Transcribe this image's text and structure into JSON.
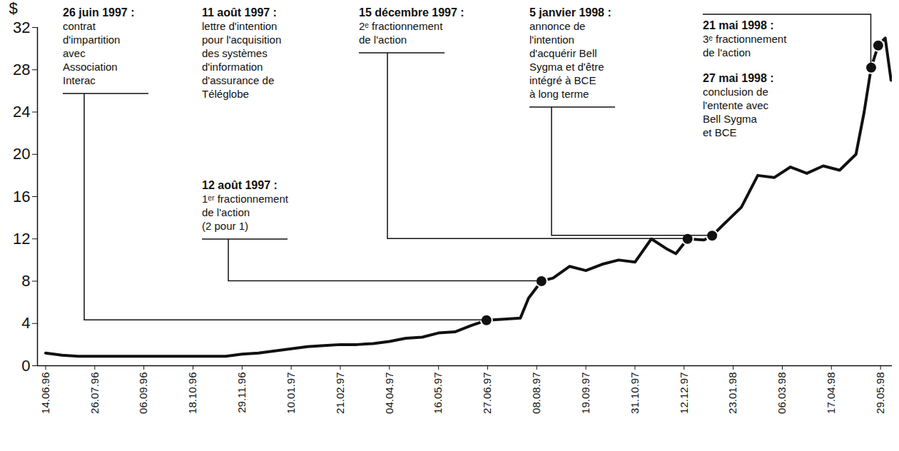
{
  "chart_data": {
    "type": "line",
    "ylabel": "$",
    "color": "#111111",
    "x": [
      "1996-06-14",
      "1996-06-28",
      "1996-07-12",
      "1996-07-26",
      "1996-08-09",
      "1996-08-23",
      "1996-09-06",
      "1996-09-20",
      "1996-10-04",
      "1996-10-18",
      "1996-11-01",
      "1996-11-15",
      "1996-11-29",
      "1996-12-13",
      "1996-12-27",
      "1997-01-10",
      "1997-01-24",
      "1997-02-07",
      "1997-02-21",
      "1997-03-07",
      "1997-03-21",
      "1997-04-04",
      "1997-04-18",
      "1997-05-02",
      "1997-05-16",
      "1997-05-30",
      "1997-06-13",
      "1997-06-26",
      "1997-07-11",
      "1997-07-25",
      "1997-08-01",
      "1997-08-12",
      "1997-08-22",
      "1997-09-05",
      "1997-09-19",
      "1997-10-03",
      "1997-10-17",
      "1997-10-31",
      "1997-11-14",
      "1997-11-28",
      "1997-12-05",
      "1997-12-15",
      "1997-12-29",
      "1998-01-05",
      "1998-01-16",
      "1998-01-30",
      "1998-02-13",
      "1998-02-27",
      "1998-03-13",
      "1998-03-27",
      "1998-04-10",
      "1998-04-24",
      "1998-05-08",
      "1998-05-15",
      "1998-05-21",
      "1998-05-27",
      "1998-06-02",
      "1998-06-07"
    ],
    "values": [
      1.2,
      1.0,
      0.9,
      0.9,
      0.9,
      0.9,
      0.9,
      0.9,
      0.9,
      0.9,
      0.9,
      0.9,
      1.1,
      1.2,
      1.4,
      1.6,
      1.8,
      1.9,
      2.0,
      2.0,
      2.1,
      2.3,
      2.6,
      2.7,
      3.1,
      3.2,
      3.8,
      4.3,
      4.4,
      4.5,
      6.4,
      8.0,
      8.3,
      9.4,
      9.0,
      9.6,
      10.0,
      9.8,
      12.0,
      11.0,
      10.6,
      12.0,
      11.9,
      12.3,
      13.5,
      15.0,
      18.0,
      17.8,
      18.8,
      18.2,
      18.9,
      18.5,
      20.0,
      24.0,
      28.2,
      30.3,
      31.0,
      27.0
    ],
    "highlights": {
      "x": [
        "1997-06-26",
        "1997-08-12",
        "1997-12-15",
        "1998-01-05",
        "1998-05-21",
        "1998-05-27"
      ],
      "values": [
        4.3,
        8.0,
        12.0,
        12.3,
        28.2,
        30.3
      ]
    },
    "xlim": [
      "1996-06-07",
      "1998-06-08"
    ],
    "xticks": [
      {
        "value": "1996-06-14",
        "label": "14.06.96"
      },
      {
        "value": "1996-07-26",
        "label": "26.07.96"
      },
      {
        "value": "1996-09-06",
        "label": "06.09.96"
      },
      {
        "value": "1996-10-18",
        "label": "18.10.96"
      },
      {
        "value": "1996-11-29",
        "label": "29.11.96"
      },
      {
        "value": "1997-01-10",
        "label": "10.01.97"
      },
      {
        "value": "1997-02-21",
        "label": "21.02.97"
      },
      {
        "value": "1997-04-04",
        "label": "04.04.97"
      },
      {
        "value": "1997-05-16",
        "label": "16.05.97"
      },
      {
        "value": "1997-06-27",
        "label": "27.06.97"
      },
      {
        "value": "1997-08-08",
        "label": "08.08.97"
      },
      {
        "value": "1997-09-19",
        "label": "19.09.97"
      },
      {
        "value": "1997-10-31",
        "label": "31.10.97"
      },
      {
        "value": "1997-12-12",
        "label": "12.12.97"
      },
      {
        "value": "1998-01-23",
        "label": "23.01.98"
      },
      {
        "value": "1998-03-06",
        "label": "06.03.98"
      },
      {
        "value": "1998-04-17",
        "label": "17.04.98"
      },
      {
        "value": "1998-05-29",
        "label": "29.05.98"
      }
    ],
    "ylim": [
      0,
      32
    ],
    "yticks": [
      0,
      4,
      8,
      12,
      16,
      20,
      24,
      28,
      32
    ],
    "annotations": [
      {
        "title": "26 juin 1997 :",
        "text": [
          "contrat",
          "d'impartition",
          "avec",
          "Association",
          "Interac"
        ],
        "x": "1997-06-26",
        "y": 4.3
      },
      {
        "title": "11 août 1997 :",
        "text": [
          "lettre d'intention",
          "pour l'acquisition",
          "des systèmes",
          "d'information",
          "d'assurance de",
          "Téléglobe"
        ]
      },
      {
        "title": "12 août 1997 :",
        "text": [
          "1ᵉʳ fractionnement",
          "de l'action",
          "(2 pour 1)"
        ],
        "x": "1997-08-12",
        "y": 8.0
      },
      {
        "title": "15 décembre 1997 :",
        "text": [
          "2ᵉ fractionnement",
          "de l'action"
        ],
        "x": "1997-12-15",
        "y": 12.0
      },
      {
        "title": "5 janvier 1998 :",
        "text": [
          "annonce de",
          "l'intention",
          "d'acquérir Bell",
          "Sygma et d'être",
          "intégré à BCE",
          "à long terme"
        ],
        "x": "1998-01-05",
        "y": 12.3
      },
      {
        "title": "21 mai 1998 :",
        "text": [
          "3ᵉ fractionnement",
          "de l'action"
        ],
        "x": "1998-05-21",
        "y": 28.2
      },
      {
        "title": "27 mai 1998 :",
        "text": [
          "conclusion de",
          "l'entente avec",
          "Bell Sygma",
          "et BCE"
        ]
      }
    ]
  }
}
